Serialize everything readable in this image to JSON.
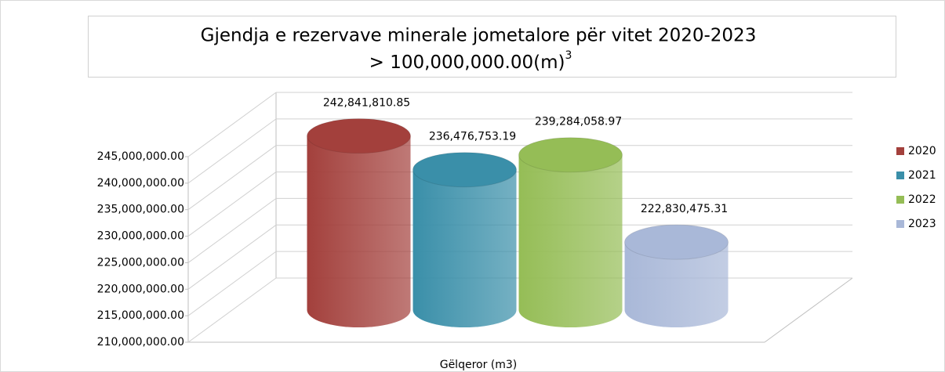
{
  "chart_data": {
    "type": "bar3d",
    "title": "Gjendja e rezervave minerale jometalore për vitet 2020-2023",
    "subtitle": "> 100,000,000.00(m)",
    "subtitle_superscript": "3",
    "categories": [
      "Gëlqeror  (m3)"
    ],
    "series": [
      {
        "name": "2020",
        "color": "#a3403c",
        "values": [
          242841810.85
        ],
        "value_labels": [
          "242,841,810.85"
        ]
      },
      {
        "name": "2021",
        "color": "#3a8fa9",
        "values": [
          236476753.19
        ],
        "value_labels": [
          "236,476,753.19"
        ]
      },
      {
        "name": "2022",
        "color": "#95bd56",
        "values": [
          239284058.97
        ],
        "value_labels": [
          "239,284,058.97"
        ]
      },
      {
        "name": "2023",
        "color": "#a9b8d8",
        "values": [
          222830475.31
        ],
        "value_labels": [
          "222,830,475.31"
        ]
      }
    ],
    "ylim": [
      210000000,
      245000000
    ],
    "yticks": [
      {
        "value": 210000000,
        "label": "210,000,000.00"
      },
      {
        "value": 215000000,
        "label": "215,000,000.00"
      },
      {
        "value": 220000000,
        "label": "220,000,000.00"
      },
      {
        "value": 225000000,
        "label": "225,000,000.00"
      },
      {
        "value": 230000000,
        "label": "230,000,000.00"
      },
      {
        "value": 235000000,
        "label": "235,000,000.00"
      },
      {
        "value": 240000000,
        "label": "240,000,000.00"
      },
      {
        "value": 245000000,
        "label": "245,000,000.00"
      }
    ],
    "grid": true,
    "legend": "right"
  }
}
